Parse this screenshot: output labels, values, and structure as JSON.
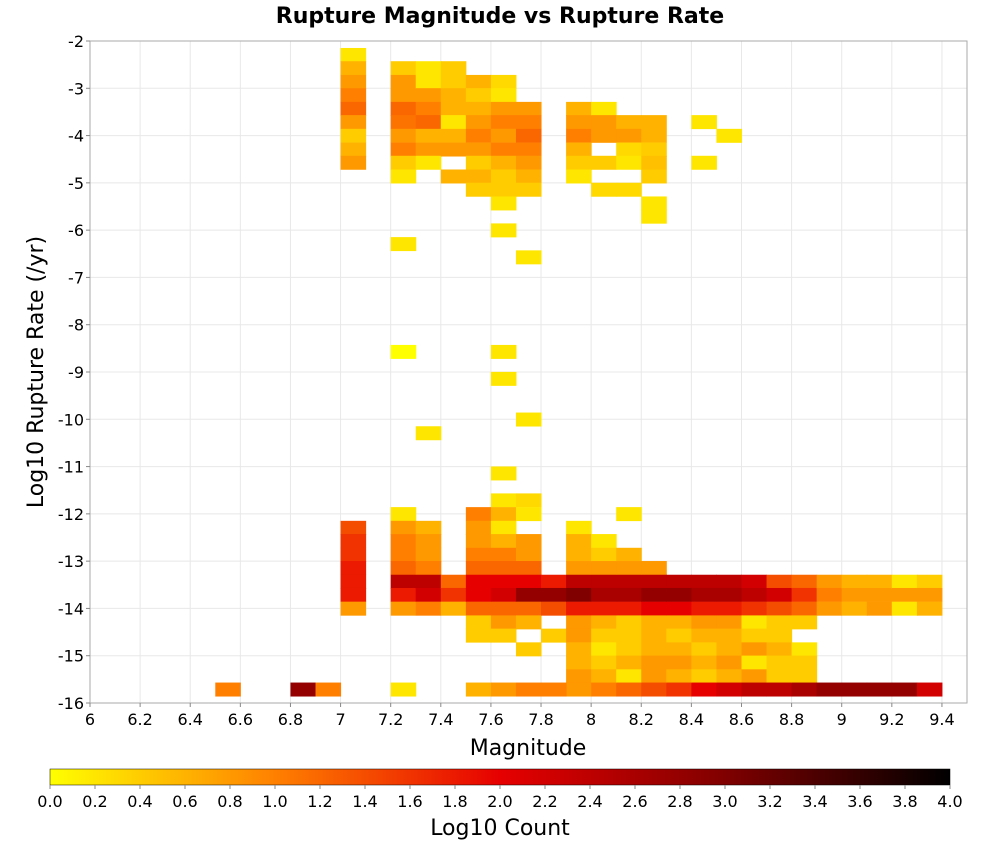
{
  "chart_data": {
    "type": "heatmap",
    "title": "Rupture Magnitude vs Rupture Rate",
    "xlabel": "Magnitude",
    "ylabel": "Log10 Rupture Rate (/yr)",
    "xlim": [
      6.0,
      9.5
    ],
    "ylim": [
      -16,
      -2
    ],
    "x_ticks": [
      6,
      6.2,
      6.4,
      6.6,
      6.8,
      7,
      7.2,
      7.4,
      7.6,
      7.8,
      8,
      8.2,
      8.4,
      8.6,
      8.8,
      9,
      9.2,
      9.4
    ],
    "y_ticks": [
      -2,
      -3,
      -4,
      -5,
      -6,
      -7,
      -8,
      -9,
      -10,
      -11,
      -12,
      -13,
      -14,
      -15,
      -16
    ],
    "x_bin_width": 0.1,
    "y_bin_width": 0.285,
    "grid": true,
    "colorbar": {
      "label": "Log10 Count",
      "range": [
        0.0,
        4.0
      ],
      "ticks": [
        "0.0",
        "0.2",
        "0.4",
        "0.6",
        "0.8",
        "1.0",
        "1.2",
        "1.4",
        "1.6",
        "1.8",
        "2.0",
        "2.2",
        "2.4",
        "2.6",
        "2.8",
        "3.0",
        "3.2",
        "3.4",
        "3.6",
        "3.8",
        "4.0"
      ],
      "colors": [
        "#ffff00",
        "#ff8000",
        "#e60000",
        "#800000",
        "#000000"
      ]
    },
    "cells": [
      [
        7.05,
        -2.29,
        0.2
      ],
      [
        7.05,
        -2.57,
        0.6
      ],
      [
        7.05,
        -2.86,
        0.8
      ],
      [
        7.05,
        -3.14,
        1.0
      ],
      [
        7.05,
        -3.43,
        1.2
      ],
      [
        7.05,
        -3.71,
        0.8
      ],
      [
        7.05,
        -4.0,
        0.4
      ],
      [
        7.05,
        -4.29,
        0.6
      ],
      [
        7.05,
        -4.57,
        0.8
      ],
      [
        7.25,
        -2.57,
        0.4
      ],
      [
        7.25,
        -2.86,
        0.8
      ],
      [
        7.25,
        -3.14,
        0.8
      ],
      [
        7.25,
        -3.43,
        1.2
      ],
      [
        7.25,
        -3.71,
        1.1
      ],
      [
        7.25,
        -4.0,
        0.8
      ],
      [
        7.25,
        -4.29,
        1.0
      ],
      [
        7.25,
        -4.57,
        0.4
      ],
      [
        7.25,
        -4.86,
        0.2
      ],
      [
        7.25,
        -6.29,
        0.2
      ],
      [
        7.35,
        -2.57,
        0.2
      ],
      [
        7.35,
        -2.86,
        0.2
      ],
      [
        7.35,
        -3.14,
        0.8
      ],
      [
        7.35,
        -3.43,
        1.0
      ],
      [
        7.35,
        -3.71,
        1.2
      ],
      [
        7.35,
        -4.0,
        0.6
      ],
      [
        7.35,
        -4.29,
        0.8
      ],
      [
        7.35,
        -4.57,
        0.2
      ],
      [
        7.45,
        -2.57,
        0.4
      ],
      [
        7.45,
        -2.86,
        0.4
      ],
      [
        7.45,
        -3.14,
        0.6
      ],
      [
        7.45,
        -3.43,
        0.6
      ],
      [
        7.45,
        -3.71,
        0.2
      ],
      [
        7.45,
        -4.0,
        0.6
      ],
      [
        7.45,
        -4.29,
        0.8
      ],
      [
        7.45,
        -4.86,
        0.6
      ],
      [
        7.55,
        -2.86,
        0.6
      ],
      [
        7.55,
        -3.14,
        0.4
      ],
      [
        7.55,
        -3.43,
        0.6
      ],
      [
        7.55,
        -3.71,
        0.8
      ],
      [
        7.55,
        -4.0,
        1.0
      ],
      [
        7.55,
        -4.29,
        0.8
      ],
      [
        7.55,
        -4.57,
        0.4
      ],
      [
        7.55,
        -4.86,
        0.6
      ],
      [
        7.55,
        -5.14,
        0.4
      ],
      [
        7.65,
        -2.86,
        0.3
      ],
      [
        7.65,
        -3.14,
        0.2
      ],
      [
        7.65,
        -3.43,
        0.8
      ],
      [
        7.65,
        -3.71,
        1.0
      ],
      [
        7.65,
        -4.0,
        0.8
      ],
      [
        7.65,
        -4.29,
        1.0
      ],
      [
        7.65,
        -4.57,
        0.6
      ],
      [
        7.65,
        -4.86,
        0.4
      ],
      [
        7.65,
        -5.14,
        0.4
      ],
      [
        7.65,
        -5.43,
        0.2
      ],
      [
        7.65,
        -6.0,
        0.2
      ],
      [
        7.75,
        -3.43,
        0.8
      ],
      [
        7.75,
        -3.71,
        1.0
      ],
      [
        7.75,
        -4.0,
        1.2
      ],
      [
        7.75,
        -4.29,
        1.0
      ],
      [
        7.75,
        -4.57,
        0.8
      ],
      [
        7.75,
        -4.86,
        0.6
      ],
      [
        7.75,
        -5.14,
        0.4
      ],
      [
        7.75,
        -6.57,
        0.2
      ],
      [
        7.95,
        -3.43,
        0.6
      ],
      [
        7.95,
        -3.71,
        0.8
      ],
      [
        7.95,
        -4.0,
        1.0
      ],
      [
        7.95,
        -4.29,
        0.6
      ],
      [
        7.95,
        -4.57,
        0.4
      ],
      [
        7.95,
        -4.86,
        0.2
      ],
      [
        8.05,
        -3.43,
        0.2
      ],
      [
        8.05,
        -3.71,
        0.8
      ],
      [
        8.05,
        -4.0,
        0.8
      ],
      [
        8.05,
        -4.57,
        0.4
      ],
      [
        8.05,
        -5.14,
        0.3
      ],
      [
        8.15,
        -3.71,
        0.6
      ],
      [
        8.15,
        -4.0,
        0.8
      ],
      [
        8.15,
        -4.29,
        0.3
      ],
      [
        8.15,
        -4.57,
        0.2
      ],
      [
        8.15,
        -5.14,
        0.3
      ],
      [
        8.25,
        -3.71,
        0.6
      ],
      [
        8.25,
        -4.0,
        0.6
      ],
      [
        8.25,
        -4.29,
        0.4
      ],
      [
        8.25,
        -4.57,
        0.5
      ],
      [
        8.25,
        -4.86,
        0.4
      ],
      [
        8.25,
        -5.43,
        0.2
      ],
      [
        8.25,
        -5.71,
        0.2
      ],
      [
        8.45,
        -3.71,
        0.2
      ],
      [
        8.45,
        -4.57,
        0.2
      ],
      [
        8.55,
        -4.0,
        0.2
      ],
      [
        7.25,
        -8.57,
        0.0
      ],
      [
        7.65,
        -8.57,
        0.2
      ],
      [
        7.65,
        -9.14,
        0.2
      ],
      [
        7.75,
        -10.0,
        0.2
      ],
      [
        7.35,
        -10.29,
        0.2
      ],
      [
        7.65,
        -11.14,
        0.2
      ],
      [
        7.05,
        -12.29,
        1.4
      ],
      [
        7.05,
        -12.57,
        1.6
      ],
      [
        7.05,
        -12.86,
        1.6
      ],
      [
        7.05,
        -13.14,
        1.8
      ],
      [
        7.05,
        -13.43,
        1.8
      ],
      [
        7.05,
        -13.71,
        1.8
      ],
      [
        7.05,
        -14.0,
        0.8
      ],
      [
        7.25,
        -12.0,
        0.2
      ],
      [
        7.25,
        -12.29,
        0.8
      ],
      [
        7.25,
        -12.57,
        1.0
      ],
      [
        7.25,
        -12.86,
        1.0
      ],
      [
        7.25,
        -13.14,
        1.2
      ],
      [
        7.25,
        -13.43,
        2.4
      ],
      [
        7.25,
        -13.71,
        1.8
      ],
      [
        7.25,
        -14.0,
        0.8
      ],
      [
        7.35,
        -12.29,
        0.6
      ],
      [
        7.35,
        -12.57,
        0.8
      ],
      [
        7.35,
        -12.86,
        0.8
      ],
      [
        7.35,
        -13.14,
        1.0
      ],
      [
        7.35,
        -13.43,
        2.4
      ],
      [
        7.35,
        -13.71,
        2.2
      ],
      [
        7.35,
        -14.0,
        1.0
      ],
      [
        7.45,
        -13.43,
        1.2
      ],
      [
        7.45,
        -13.71,
        1.6
      ],
      [
        7.45,
        -14.0,
        0.6
      ],
      [
        7.55,
        -12.0,
        1.0
      ],
      [
        7.55,
        -12.29,
        0.8
      ],
      [
        7.55,
        -12.57,
        0.8
      ],
      [
        7.55,
        -12.86,
        1.0
      ],
      [
        7.55,
        -13.14,
        1.2
      ],
      [
        7.55,
        -13.43,
        2.0
      ],
      [
        7.55,
        -13.71,
        2.0
      ],
      [
        7.55,
        -14.0,
        1.2
      ],
      [
        7.55,
        -14.29,
        0.4
      ],
      [
        7.55,
        -14.57,
        0.4
      ],
      [
        7.65,
        -11.71,
        0.2
      ],
      [
        7.65,
        -12.0,
        0.6
      ],
      [
        7.65,
        -12.29,
        0.2
      ],
      [
        7.65,
        -12.57,
        0.6
      ],
      [
        7.65,
        -12.86,
        1.0
      ],
      [
        7.65,
        -13.14,
        1.2
      ],
      [
        7.65,
        -13.43,
        2.0
      ],
      [
        7.65,
        -13.71,
        2.2
      ],
      [
        7.65,
        -14.0,
        1.2
      ],
      [
        7.65,
        -14.29,
        0.8
      ],
      [
        7.65,
        -14.57,
        0.4
      ],
      [
        7.75,
        -11.71,
        0.3
      ],
      [
        7.75,
        -12.0,
        0.2
      ],
      [
        7.75,
        -12.57,
        0.8
      ],
      [
        7.75,
        -12.86,
        0.8
      ],
      [
        7.75,
        -13.14,
        1.2
      ],
      [
        7.75,
        -13.43,
        2.0
      ],
      [
        7.75,
        -13.71,
        2.8
      ],
      [
        7.75,
        -14.0,
        1.2
      ],
      [
        7.75,
        -14.29,
        0.6
      ],
      [
        7.75,
        -14.86,
        0.4
      ],
      [
        7.85,
        -13.43,
        1.8
      ],
      [
        7.85,
        -13.71,
        2.8
      ],
      [
        7.85,
        -14.0,
        1.4
      ],
      [
        7.85,
        -14.57,
        0.4
      ],
      [
        7.95,
        -12.29,
        0.2
      ],
      [
        7.95,
        -12.57,
        0.6
      ],
      [
        7.95,
        -12.86,
        0.6
      ],
      [
        7.95,
        -13.14,
        0.8
      ],
      [
        7.95,
        -13.43,
        2.4
      ],
      [
        7.95,
        -13.71,
        3.0
      ],
      [
        7.95,
        -14.0,
        1.8
      ],
      [
        7.95,
        -14.29,
        0.8
      ],
      [
        7.95,
        -14.57,
        0.8
      ],
      [
        7.95,
        -14.86,
        0.6
      ],
      [
        7.95,
        -15.14,
        0.6
      ],
      [
        7.95,
        -15.43,
        0.8
      ],
      [
        7.95,
        -15.71,
        0.8
      ],
      [
        8.05,
        -12.57,
        0.2
      ],
      [
        8.05,
        -12.86,
        0.4
      ],
      [
        8.05,
        -13.14,
        0.8
      ],
      [
        8.05,
        -13.43,
        2.4
      ],
      [
        8.05,
        -13.71,
        2.6
      ],
      [
        8.05,
        -14.0,
        1.8
      ],
      [
        8.05,
        -14.29,
        0.6
      ],
      [
        8.05,
        -14.57,
        0.4
      ],
      [
        8.05,
        -14.86,
        0.2
      ],
      [
        8.05,
        -15.14,
        0.4
      ],
      [
        8.05,
        -15.43,
        0.6
      ],
      [
        8.05,
        -15.71,
        1.0
      ],
      [
        8.15,
        -12.0,
        0.2
      ],
      [
        8.15,
        -12.86,
        0.6
      ],
      [
        8.15,
        -13.14,
        0.8
      ],
      [
        8.15,
        -13.43,
        2.4
      ],
      [
        8.15,
        -13.71,
        2.6
      ],
      [
        8.15,
        -14.0,
        1.8
      ],
      [
        8.15,
        -14.29,
        0.4
      ],
      [
        8.15,
        -14.57,
        0.4
      ],
      [
        8.15,
        -14.86,
        0.4
      ],
      [
        8.15,
        -15.14,
        0.6
      ],
      [
        8.15,
        -15.43,
        0.2
      ],
      [
        8.15,
        -15.71,
        1.2
      ],
      [
        8.25,
        -13.14,
        0.8
      ],
      [
        8.25,
        -13.43,
        2.4
      ],
      [
        8.25,
        -13.71,
        2.8
      ],
      [
        8.25,
        -14.0,
        2.0
      ],
      [
        8.25,
        -14.29,
        0.6
      ],
      [
        8.25,
        -14.57,
        0.6
      ],
      [
        8.25,
        -14.86,
        0.6
      ],
      [
        8.25,
        -15.14,
        0.8
      ],
      [
        8.25,
        -15.43,
        0.8
      ],
      [
        8.25,
        -15.71,
        1.4
      ],
      [
        8.35,
        -13.43,
        2.4
      ],
      [
        8.35,
        -13.71,
        2.8
      ],
      [
        8.35,
        -14.0,
        2.0
      ],
      [
        8.35,
        -14.29,
        0.6
      ],
      [
        8.35,
        -14.57,
        0.4
      ],
      [
        8.35,
        -14.86,
        0.6
      ],
      [
        8.35,
        -15.14,
        0.8
      ],
      [
        8.35,
        -15.43,
        0.6
      ],
      [
        8.35,
        -15.71,
        1.6
      ],
      [
        8.45,
        -13.43,
        2.4
      ],
      [
        8.45,
        -13.71,
        2.6
      ],
      [
        8.45,
        -14.0,
        1.8
      ],
      [
        8.45,
        -14.29,
        0.8
      ],
      [
        8.45,
        -14.57,
        0.6
      ],
      [
        8.45,
        -14.86,
        0.4
      ],
      [
        8.45,
        -15.14,
        0.6
      ],
      [
        8.45,
        -15.43,
        0.4
      ],
      [
        8.45,
        -15.71,
        2.0
      ],
      [
        8.55,
        -13.43,
        2.4
      ],
      [
        8.55,
        -13.71,
        2.6
      ],
      [
        8.55,
        -14.0,
        1.8
      ],
      [
        8.55,
        -14.29,
        0.8
      ],
      [
        8.55,
        -14.57,
        0.6
      ],
      [
        8.55,
        -14.86,
        0.6
      ],
      [
        8.55,
        -15.14,
        0.8
      ],
      [
        8.55,
        -15.43,
        0.6
      ],
      [
        8.55,
        -15.71,
        2.2
      ],
      [
        8.65,
        -13.43,
        2.2
      ],
      [
        8.65,
        -13.71,
        2.4
      ],
      [
        8.65,
        -14.0,
        1.6
      ],
      [
        8.65,
        -14.29,
        0.2
      ],
      [
        8.65,
        -14.57,
        0.4
      ],
      [
        8.65,
        -14.86,
        0.8
      ],
      [
        8.65,
        -15.14,
        0.2
      ],
      [
        8.65,
        -15.43,
        0.8
      ],
      [
        8.65,
        -15.71,
        2.4
      ],
      [
        8.75,
        -13.43,
        1.4
      ],
      [
        8.75,
        -13.71,
        2.2
      ],
      [
        8.75,
        -14.0,
        1.4
      ],
      [
        8.75,
        -14.29,
        0.4
      ],
      [
        8.75,
        -14.57,
        0.4
      ],
      [
        8.75,
        -14.86,
        0.6
      ],
      [
        8.75,
        -15.14,
        0.4
      ],
      [
        8.75,
        -15.43,
        0.4
      ],
      [
        8.75,
        -15.71,
        2.4
      ],
      [
        8.85,
        -13.43,
        1.2
      ],
      [
        8.85,
        -13.71,
        1.6
      ],
      [
        8.85,
        -14.0,
        1.2
      ],
      [
        8.85,
        -14.29,
        0.4
      ],
      [
        8.85,
        -14.86,
        0.2
      ],
      [
        8.85,
        -15.14,
        0.4
      ],
      [
        8.85,
        -15.43,
        0.4
      ],
      [
        8.85,
        -15.71,
        2.6
      ],
      [
        8.95,
        -13.43,
        0.8
      ],
      [
        8.95,
        -13.71,
        1.0
      ],
      [
        8.95,
        -14.0,
        0.8
      ],
      [
        8.95,
        -15.71,
        2.8
      ],
      [
        9.05,
        -13.43,
        0.6
      ],
      [
        9.05,
        -13.71,
        0.8
      ],
      [
        9.05,
        -14.0,
        0.6
      ],
      [
        9.05,
        -15.71,
        2.8
      ],
      [
        9.15,
        -13.43,
        0.6
      ],
      [
        9.15,
        -13.71,
        0.8
      ],
      [
        9.15,
        -14.0,
        0.8
      ],
      [
        9.15,
        -15.71,
        2.8
      ],
      [
        9.25,
        -13.43,
        0.2
      ],
      [
        9.25,
        -13.71,
        0.8
      ],
      [
        9.25,
        -14.0,
        0.2
      ],
      [
        9.25,
        -15.71,
        2.8
      ],
      [
        9.35,
        -13.43,
        0.4
      ],
      [
        9.35,
        -13.71,
        0.8
      ],
      [
        9.35,
        -14.0,
        0.6
      ],
      [
        9.35,
        -15.71,
        2.2
      ],
      [
        6.55,
        -15.71,
        1.0
      ],
      [
        6.85,
        -15.71,
        2.8
      ],
      [
        6.95,
        -15.71,
        1.0
      ],
      [
        7.25,
        -15.71,
        0.2
      ],
      [
        7.55,
        -15.71,
        0.6
      ],
      [
        7.65,
        -15.71,
        0.8
      ],
      [
        7.75,
        -15.71,
        1.0
      ],
      [
        7.85,
        -15.71,
        1.0
      ]
    ]
  }
}
